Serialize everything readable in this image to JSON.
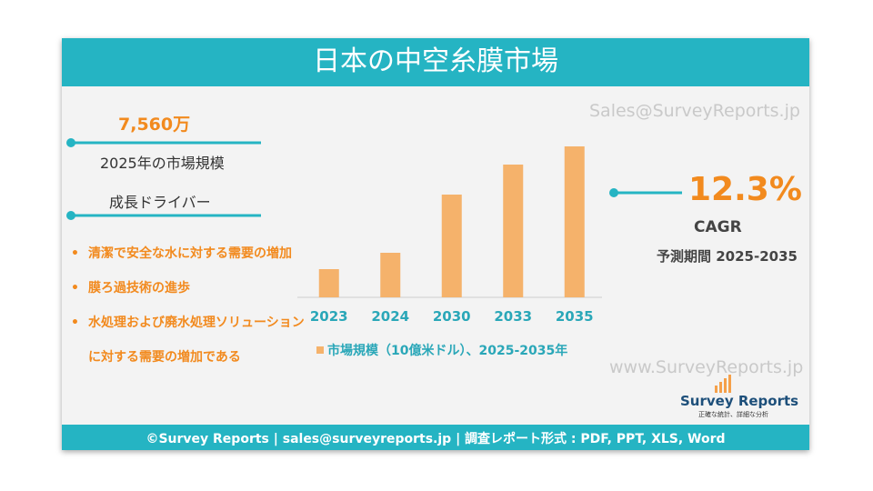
{
  "header": {
    "title": "日本の中空糸膜市場"
  },
  "market_size": {
    "value": "7,560万",
    "label": "2025年の市場規模"
  },
  "drivers": {
    "title": "成長ドライバー",
    "items": [
      "清潔で安全な水に対する需要の増加",
      "膜ろ過技術の進歩",
      "水処理および廃水処理ソリューションに対する需要の増加である"
    ]
  },
  "cagr": {
    "value": "12.3%",
    "label": "CAGR",
    "period": "予測期間 2025-2035"
  },
  "watermarks": [
    "Sales@SurveyReports.jp",
    "www.SurveyReports.jp"
  ],
  "logo": {
    "name": "Survey Reports",
    "tagline": "正確な統計、詳細な分析"
  },
  "footer": {
    "text": "©Survey Reports | sales@surveyreports.jp |  調査レポート形式 : PDF, PPT, XLS, Word"
  },
  "chart_data": {
    "type": "bar",
    "categories": [
      "2023",
      "2024",
      "2030",
      "2033",
      "2035"
    ],
    "series": [
      {
        "name": "市場規模（10億米ドル）、2025-2035年",
        "color": "#f5b26b",
        "values": [
          31,
          49,
          113,
          146,
          166
        ]
      }
    ]
  }
}
